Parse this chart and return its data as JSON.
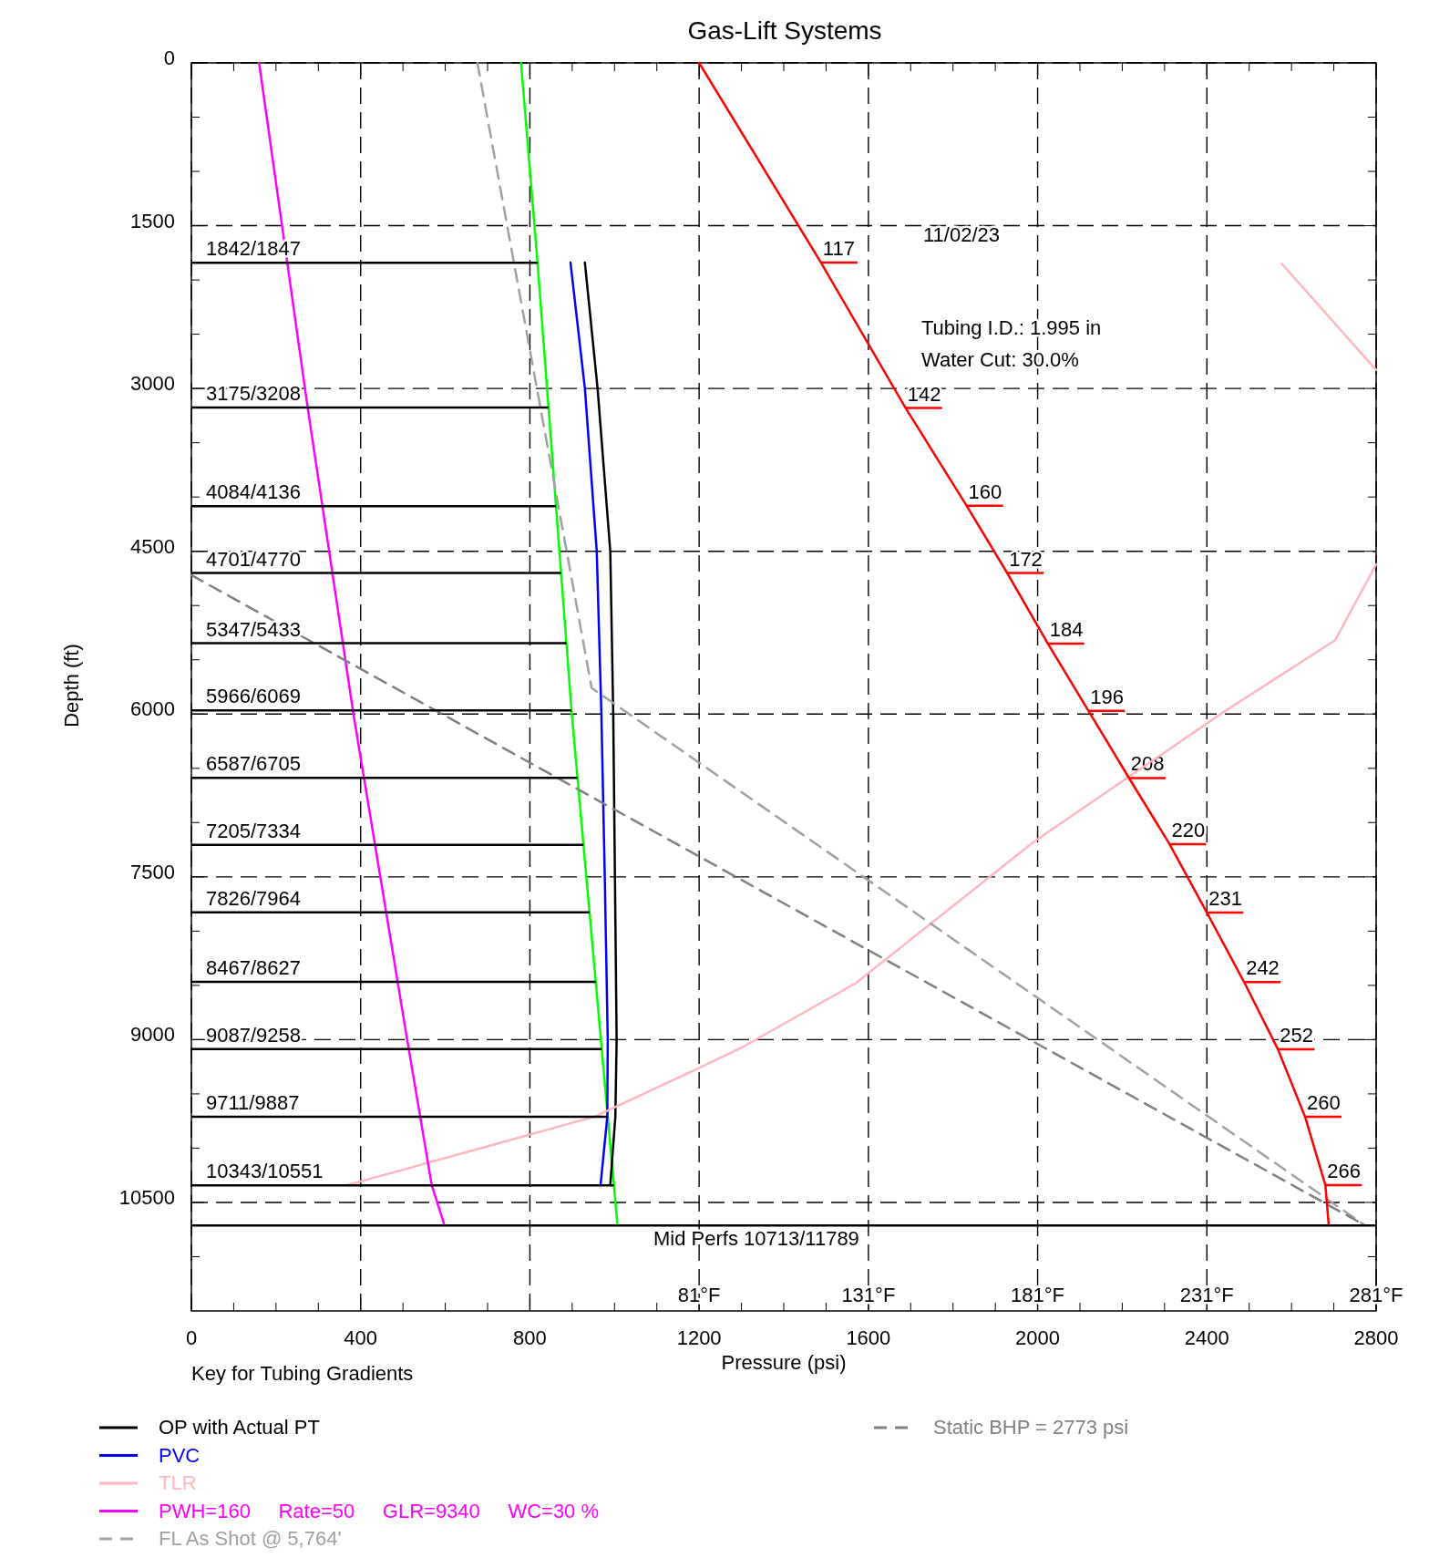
{
  "chart_data": {
    "type": "line",
    "title": "Gas-Lift Systems",
    "xlabel": "Pressure (psi)",
    "ylabel": "Depth (ft)",
    "xlim": [
      0,
      2800
    ],
    "xticks": [
      0,
      {
        "value": 100,
        "label": null
      },
      {
        "value": 200,
        "label": null
      },
      {
        "value": 300,
        "label": null
      },
      400,
      {
        "value": 500,
        "label": null
      },
      {
        "value": 600,
        "label": null
      },
      {
        "value": 700,
        "label": null
      },
      800,
      {
        "value": 900,
        "label": null
      },
      {
        "value": 1000,
        "label": null
      },
      {
        "value": 1100,
        "label": null
      },
      1200,
      {
        "value": 1300,
        "label": null
      },
      {
        "value": 1400,
        "label": null
      },
      {
        "value": 1500,
        "label": null
      },
      1600,
      {
        "value": 1700,
        "label": null
      },
      {
        "value": 1800,
        "label": null
      },
      {
        "value": 1900,
        "label": null
      },
      2000,
      {
        "value": 2100,
        "label": null
      },
      {
        "value": 2200,
        "label": null
      },
      {
        "value": 2300,
        "label": null
      },
      2400,
      {
        "value": 2500,
        "label": null
      },
      {
        "value": 2600,
        "label": null
      },
      {
        "value": 2700,
        "label": null
      },
      2800
    ],
    "ylim": [
      11500,
      0
    ],
    "yticks": [
      0,
      {
        "value": 500,
        "label": null
      },
      {
        "value": 1000,
        "label": null
      },
      1500,
      {
        "value": 2000,
        "label": null
      },
      {
        "value": 2500,
        "label": null
      },
      3000,
      {
        "value": 3500,
        "label": null
      },
      {
        "value": 4000,
        "label": null
      },
      4500,
      {
        "value": 5000,
        "label": null
      },
      {
        "value": 5500,
        "label": null
      },
      6000,
      {
        "value": 6500,
        "label": null
      },
      {
        "value": 7000,
        "label": null
      },
      7500,
      {
        "value": 8000,
        "label": null
      },
      {
        "value": 8500,
        "label": null
      },
      9000,
      {
        "value": 9500,
        "label": null
      },
      {
        "value": 10000,
        "label": null
      },
      10500,
      {
        "value": 11000,
        "label": null
      }
    ],
    "x2lim": [
      -69,
      281
    ],
    "x2ticks": [
      {
        "value": 81,
        "label": "81°F"
      },
      {
        "value": 131,
        "label": "131°F"
      },
      {
        "value": 181,
        "label": "181°F"
      },
      {
        "value": 231,
        "label": "231°F"
      },
      {
        "value": 281,
        "label": "281°F"
      }
    ],
    "grid": true,
    "legend": "bottom",
    "series": [
      {
        "color": "#00ff00",
        "x": [
          779,
          818,
          899,
          1007
        ],
        "values": [
          0,
          1840,
          6000,
          10710
        ]
      },
      {
        "name": "OP with Actual PT",
        "color": "#000000",
        "x": [
          930,
          960,
          990,
          997,
          1005,
          1002,
          990
        ],
        "values": [
          1840,
          3000,
          4500,
          6000,
          9000,
          9710,
          10340
        ]
      },
      {
        "name": "PVC",
        "color": "#0000ff",
        "x": [
          896,
          930,
          958,
          969,
          977,
          984,
          983,
          967
        ],
        "values": [
          1840,
          3000,
          4500,
          6000,
          7500,
          9000,
          9710,
          10340
        ]
      },
      {
        "name": "TLR",
        "color": "#ffb6c1",
        "x": [
          2577,
          2800,
          null,
          2800,
          2703,
          2440,
          1990,
          1570,
          1307,
          1184,
          953,
          369
        ],
        "values": [
          1850,
          2830,
          null,
          4620,
          5320,
          5980,
          7180,
          8480,
          9060,
          9290,
          9710,
          10340
        ]
      },
      {
        "name": "PWH=160     Rate=50     GLR=9340     WC=30 %",
        "color": "#ff00ff",
        "x": [
          160,
          275,
          383,
          510,
          568,
          598
        ],
        "values": [
          0,
          3180,
          6000,
          9000,
          10340,
          10710
        ]
      },
      {
        "name": "FL As Shot @ 5,764'",
        "color": "#a0a0a0",
        "line_style": "dashed",
        "x": [
          676,
          946,
          2773
        ],
        "values": [
          0,
          5760,
          10710
        ]
      },
      {
        "name": "Static BHP = 2773 psi",
        "color": "#808080",
        "line_style": "dashed",
        "x": [
          0,
          2773
        ],
        "values": [
          4720,
          10710
        ]
      },
      {
        "color": "#ff0000",
        "axis": "x2",
        "x": [
          81,
          117,
          142,
          160,
          172,
          184,
          196,
          208,
          220,
          231,
          242,
          252,
          260,
          266,
          267
        ],
        "values": [
          0,
          1840,
          3180,
          4080,
          4700,
          5350,
          5970,
          6590,
          7200,
          7830,
          8470,
          9090,
          9710,
          10340,
          10710
        ]
      }
    ],
    "ref_lines": [
      {
        "axis": "y",
        "value": 1842,
        "label": "1842/1847"
      },
      {
        "axis": "y",
        "value": 3175,
        "label": "3175/3208"
      },
      {
        "axis": "y",
        "value": 4084,
        "label": "4084/4136"
      },
      {
        "axis": "y",
        "value": 4701,
        "label": "4701/4770"
      },
      {
        "axis": "y",
        "value": 5347,
        "label": "5347/5433"
      },
      {
        "axis": "y",
        "value": 5966,
        "label": "5966/6069"
      },
      {
        "axis": "y",
        "value": 6587,
        "label": "6587/6705"
      },
      {
        "axis": "y",
        "value": 7205,
        "label": "7205/7334"
      },
      {
        "axis": "y",
        "value": 7826,
        "label": "7826/7964"
      },
      {
        "axis": "y",
        "value": 8467,
        "label": "8467/8627"
      },
      {
        "axis": "y",
        "value": 9087,
        "label": "9087/9258"
      },
      {
        "axis": "y",
        "value": 9711,
        "label": "9711/9887"
      },
      {
        "axis": "y",
        "value": 10343,
        "label": "10343/10551"
      },
      {
        "axis": "y",
        "value": 10713,
        "label": "Mid Perfs 10713/11789"
      }
    ],
    "annotations": [
      "11/02/23",
      "Tubing I.D.: 1.995 in",
      "Water Cut: 30.0%",
      "Key for Tubing Gradients",
      {
        "text": "117",
        "x": 1488,
        "y": 1840
      },
      {
        "text": "142",
        "x": 1688,
        "y": 3180
      },
      {
        "text": "160",
        "x": 1832,
        "y": 4080
      },
      {
        "text": "172",
        "x": 1928,
        "y": 4700
      },
      {
        "text": "184",
        "x": 2024,
        "y": 5350
      },
      {
        "text": "196",
        "x": 2120,
        "y": 5970
      },
      {
        "text": "208",
        "x": 2216,
        "y": 6590
      },
      {
        "text": "220",
        "x": 2312,
        "y": 7200
      },
      {
        "text": "231",
        "x": 2400,
        "y": 7830
      },
      {
        "text": "242",
        "x": 2488,
        "y": 8470
      },
      {
        "text": "252",
        "x": 2568,
        "y": 9090
      },
      {
        "text": "260",
        "x": 2632,
        "y": 9710
      },
      {
        "text": "266",
        "x": 2680,
        "y": 10340
      }
    ]
  }
}
